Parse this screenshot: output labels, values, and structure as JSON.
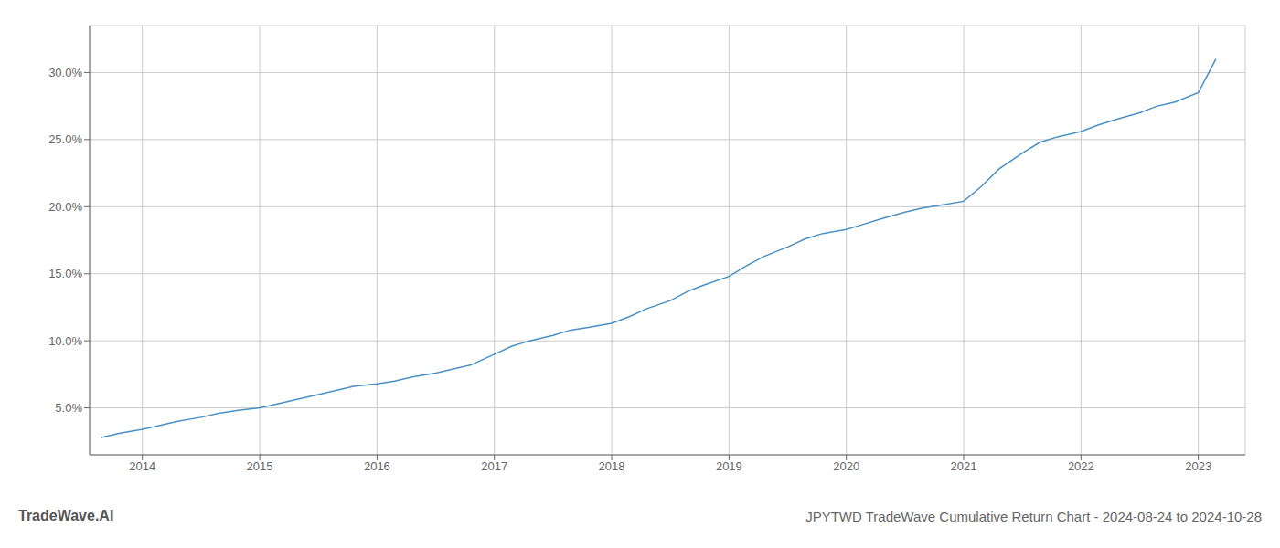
{
  "chart_data": {
    "type": "line",
    "title": "JPYTWD TradeWave Cumulative Return Chart - 2024-08-24 to 2024-10-28",
    "annotations": [
      "TradeWave.AI"
    ],
    "color": "#4a90c4",
    "grid": true,
    "x": [
      2013.65,
      2013.8,
      2014.0,
      2014.15,
      2014.3,
      2014.5,
      2014.65,
      2014.8,
      2015.0,
      2015.15,
      2015.3,
      2015.5,
      2015.65,
      2015.8,
      2016.0,
      2016.15,
      2016.3,
      2016.5,
      2016.65,
      2016.8,
      2017.0,
      2017.15,
      2017.3,
      2017.5,
      2017.65,
      2017.8,
      2018.0,
      2018.15,
      2018.3,
      2018.5,
      2018.65,
      2018.8,
      2019.0,
      2019.15,
      2019.3,
      2019.5,
      2019.65,
      2019.8,
      2020.0,
      2020.15,
      2020.3,
      2020.5,
      2020.65,
      2020.8,
      2021.0,
      2021.15,
      2021.3,
      2021.5,
      2021.65,
      2021.8,
      2022.0,
      2022.15,
      2022.3,
      2022.5,
      2022.65,
      2022.8,
      2023.0,
      2023.15
    ],
    "values": [
      0.028,
      0.031,
      0.034,
      0.037,
      0.04,
      0.043,
      0.046,
      0.048,
      0.05,
      0.053,
      0.056,
      0.06,
      0.063,
      0.066,
      0.068,
      0.07,
      0.073,
      0.076,
      0.079,
      0.082,
      0.09,
      0.096,
      0.1,
      0.104,
      0.108,
      0.11,
      0.113,
      0.118,
      0.124,
      0.13,
      0.137,
      0.142,
      0.148,
      0.156,
      0.163,
      0.17,
      0.176,
      0.18,
      0.183,
      0.187,
      0.191,
      0.196,
      0.199,
      0.201,
      0.204,
      0.215,
      0.228,
      0.24,
      0.248,
      0.252,
      0.256,
      0.261,
      0.265,
      0.27,
      0.275,
      0.278,
      0.285,
      0.31
    ],
    "xlim": [
      2013.55,
      2023.4
    ],
    "xticks": [
      2014,
      2015,
      2016,
      2017,
      2018,
      2019,
      2020,
      2021,
      2022,
      2023
    ],
    "ylim": [
      0.015,
      0.335
    ],
    "yticks": [
      {
        "value": 0.05,
        "label": "5.0%"
      },
      {
        "value": 0.1,
        "label": "10.0%"
      },
      {
        "value": 0.15,
        "label": "15.0%"
      },
      {
        "value": 0.2,
        "label": "20.0%"
      },
      {
        "value": 0.25,
        "label": "25.0%"
      },
      {
        "value": 0.3,
        "label": "30.0%"
      }
    ]
  }
}
